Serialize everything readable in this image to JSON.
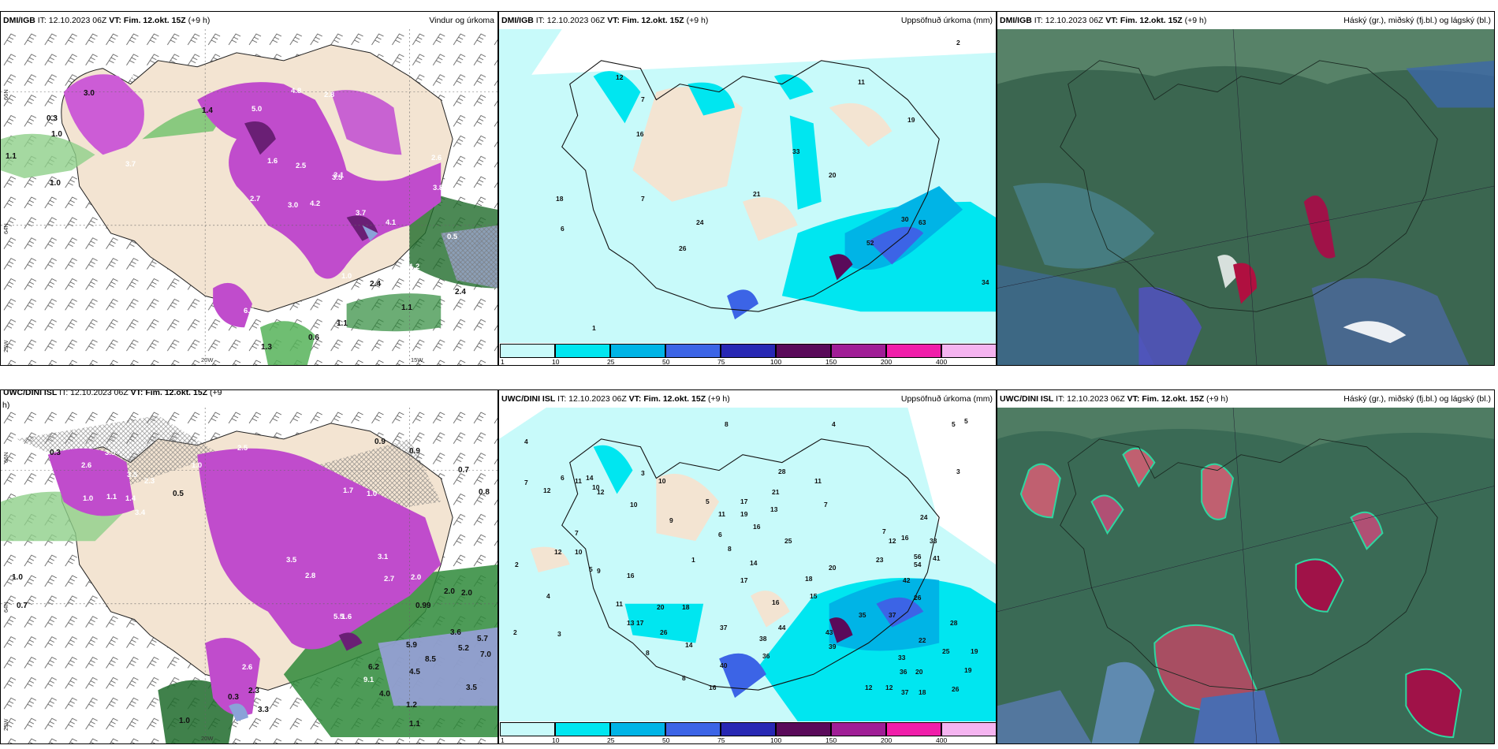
{
  "panels": [
    {
      "id": "p1",
      "source": "DMI/IGB",
      "it": "IT: 12.10.2023 06Z",
      "vt": "VT: Fim. 12.okt. 15Z",
      "lead": "(+9 h)",
      "product": "Vindur og úrkoma"
    },
    {
      "id": "p2",
      "source": "DMI/IGB",
      "it": "IT: 12.10.2023 06Z",
      "vt": "VT: Fim. 12.okt. 15Z",
      "lead": "(+9 h)",
      "product": "Uppsöfnuð úrkoma (mm)"
    },
    {
      "id": "p3",
      "source": "DMI/IGB",
      "it": "IT: 12.10.2023 06Z",
      "vt": "VT: Fim. 12.okt. 15Z",
      "lead": "(+9 h)",
      "product": "Háský (gr.), miðský (fj.bl.) og lágský (bl.)"
    },
    {
      "id": "p4",
      "source": "UWC/DINI ISL",
      "it": "IT: 12.10.2023 06Z",
      "vt": "VT: Fim. 12.okt. 15Z",
      "lead": "(+9",
      "lead_wrap": "h)",
      "product": ""
    },
    {
      "id": "p5",
      "source": "UWC/DINI ISL",
      "it": "IT: 12.10.2023 06Z",
      "vt": "VT: Fim. 12.okt. 15Z",
      "lead": "(+9 h)",
      "product": "Uppsöfnuð úrkoma (mm)"
    },
    {
      "id": "p6",
      "source": "UWC/DINI ISL",
      "it": "IT: 12.10.2023 06Z",
      "vt": "VT: Fim. 12.okt. 15Z",
      "lead": "(+9 h)",
      "product": "Háský (gr.), miðský (fj.bl.) og lágský (bl.)"
    }
  ],
  "axis_labels": {
    "lat_66": "66N",
    "lat_64": "64N",
    "lon_20w": "20W",
    "lon_15w": "15W",
    "lon_25w": "25W"
  },
  "legend": {
    "ticks": [
      "1",
      "10",
      "25",
      "50",
      "75",
      "100",
      "150",
      "200",
      "400"
    ],
    "colors": [
      "#c8fafa",
      "#00e6f0",
      "#00b4e6",
      "#3c64e6",
      "#2828b4",
      "#5a0a5a",
      "#a01e96",
      "#f01eaa",
      "#f5b4f0"
    ]
  },
  "wind_annotations_top": [
    "3.0",
    "3.8",
    "1.0",
    "3.7",
    "1.4",
    "2.8",
    "5.0",
    "4.8",
    "2.7",
    "2.5",
    "3.1",
    "3.0",
    "4.2",
    "3.7",
    "2.6",
    "3.8",
    "1.1",
    "1.0",
    "3.5",
    "1.6",
    "0.5",
    "1.2",
    "2.4",
    "0.6",
    "1.1",
    "1.3",
    "6.5",
    "0.3",
    "2.4",
    "1.1",
    "1.0",
    "4.1"
  ],
  "wind_annotations_bottom": [
    "0.3",
    "2.6",
    "3.5",
    "3.5",
    "1.0",
    "2.3",
    "1.4",
    "1.1",
    "1.0",
    "3.4",
    "0.5",
    "1.0",
    "0.7",
    "2.5",
    "0.9",
    "0.7",
    "0.8",
    "3.5",
    "2.8",
    "1.6",
    "3.1",
    "2.0",
    "2.7",
    "1.0",
    "0.99",
    "2.0",
    "2.0",
    "3.6",
    "5.2",
    "7.0",
    "5.7",
    "6.2",
    "9.1",
    "4.5",
    "8.5",
    "4.0",
    "5.9",
    "3.5",
    "1.2",
    "2.6",
    "0.3",
    "3.3",
    "2.3",
    "1.0",
    "1.1",
    "1.7",
    "5.5",
    "0.9"
  ],
  "precip_annotations_top": [
    "16",
    "7",
    "11",
    "19",
    "33",
    "20",
    "21",
    "18",
    "7",
    "6",
    "24",
    "26",
    "1",
    "2",
    "34",
    "52",
    "30",
    "63",
    "12"
  ],
  "precip_annotations_bottom": [
    "4",
    "8",
    "4",
    "5",
    "5",
    "7",
    "12",
    "6",
    "14",
    "11",
    "12",
    "10",
    "9",
    "10",
    "7",
    "3",
    "1",
    "2",
    "12",
    "10",
    "5",
    "4",
    "2",
    "3",
    "9",
    "16",
    "20",
    "18",
    "8",
    "5",
    "11",
    "6",
    "8",
    "17",
    "19",
    "16",
    "21",
    "14",
    "17",
    "28",
    "11",
    "13",
    "25",
    "26",
    "7",
    "14",
    "16",
    "20",
    "15",
    "18",
    "12",
    "16",
    "24",
    "33",
    "56",
    "54",
    "41",
    "23",
    "7",
    "42",
    "26",
    "3",
    "13",
    "17",
    "10",
    "11",
    "37",
    "40",
    "44",
    "35",
    "37",
    "38",
    "28",
    "12",
    "19",
    "33",
    "36",
    "22",
    "25",
    "20",
    "39",
    "16",
    "8",
    "12",
    "37",
    "18",
    "26",
    "19",
    "36",
    "43"
  ]
}
